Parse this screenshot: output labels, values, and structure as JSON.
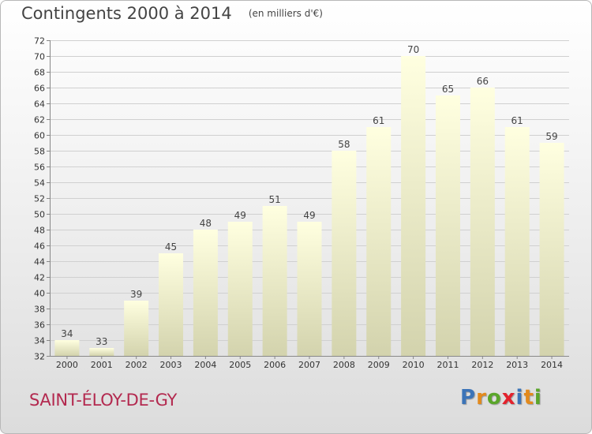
{
  "header": {
    "title": "Contingents 2000 à 2014",
    "subtitle": "(en milliers d'€)"
  },
  "commune": "SAINT-ÉLOY-DE-GY",
  "logo": {
    "text": "Proxiti",
    "letter_colors": [
      "#3c74b8",
      "#e38a1c",
      "#5aa62a",
      "#e3222d",
      "#3c74b8",
      "#e38a1c",
      "#5aa62a"
    ]
  },
  "colors": {
    "bar_top": "#ffffe0",
    "bar_bottom": "#d3d3ad",
    "grid": "#d0d0d0",
    "axis_text": "#333333",
    "commune_text": "#b3294f"
  },
  "chart_data": {
    "type": "bar",
    "categories": [
      "2000",
      "2001",
      "2002",
      "2003",
      "2004",
      "2005",
      "2006",
      "2007",
      "2008",
      "2009",
      "2010",
      "2011",
      "2012",
      "2013",
      "2014"
    ],
    "values": [
      34,
      33,
      39,
      45,
      48,
      49,
      51,
      49,
      58,
      61,
      70,
      65,
      66,
      61,
      59
    ],
    "ylim": [
      32,
      72
    ],
    "yticks": [
      32,
      34,
      36,
      38,
      40,
      42,
      44,
      46,
      48,
      50,
      52,
      54,
      56,
      58,
      60,
      62,
      64,
      66,
      68,
      70,
      72
    ],
    "grid": true,
    "data_labels": true
  }
}
